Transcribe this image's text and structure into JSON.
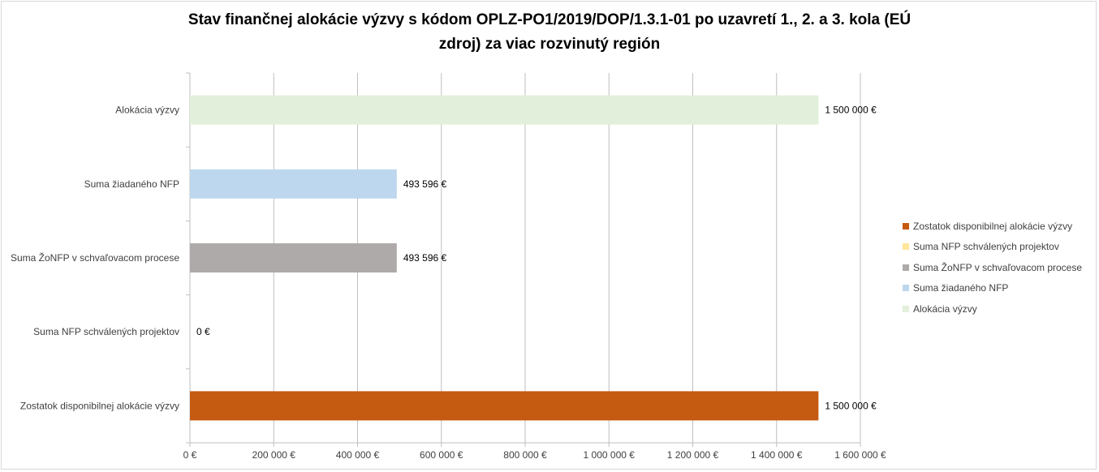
{
  "chart_data": {
    "type": "bar",
    "orientation": "horizontal",
    "title_lines": [
      "Stav finančnej alokácie výzvy s kódom OPLZ-PO1/2019/DOP/1.3.1-01 po uzavretí 1., 2. a 3. kola (EÚ",
      "zdroj) za viac rozvinutý región"
    ],
    "categories": [
      "Alokácia výzvy",
      "Suma žiadaného NFP",
      "Suma ŽoNFP v schvaľovacom procese",
      "Suma NFP schválených projektov",
      "Zostatok disponibilnej alokácie výzvy"
    ],
    "values": [
      1500000,
      493596,
      493596,
      0,
      1500000
    ],
    "value_labels": [
      "1 500 000 €",
      "493 596 €",
      "493 596 €",
      "0 €",
      "1 500 000 €"
    ],
    "colors": [
      "#e2efda",
      "#bdd7ee",
      "#aeaaaa",
      "#ffe699",
      "#c55a11"
    ],
    "xlim": [
      0,
      1600000
    ],
    "x_ticks": [
      0,
      200000,
      400000,
      600000,
      800000,
      1000000,
      1200000,
      1400000,
      1600000
    ],
    "x_tick_labels": [
      "0 €",
      "200 000 €",
      "400 000 €",
      "600 000 €",
      "800 000 €",
      "1 000 000 €",
      "1 200 000 €",
      "1 400 000 €",
      "1 600 000 €"
    ],
    "grid": true,
    "legend_position": "right",
    "legend": [
      {
        "label": "Zostatok disponibilnej alokácie výzvy",
        "color": "#c55a11"
      },
      {
        "label": "Suma NFP schválených projektov",
        "color": "#ffe699"
      },
      {
        "label": "Suma ŽoNFP v schvaľovacom procese",
        "color": "#aeaaaa"
      },
      {
        "label": "Suma žiadaného NFP",
        "color": "#bdd7ee"
      },
      {
        "label": "Alokácia výzvy",
        "color": "#e2efda"
      }
    ]
  }
}
